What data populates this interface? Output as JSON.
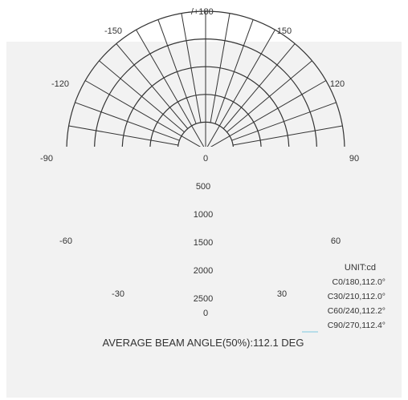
{
  "chart_data": {
    "type": "polar",
    "title": "",
    "unit_label": "UNIT:cd",
    "radial_ticks": [
      0,
      500,
      1000,
      1500,
      2000,
      2500
    ],
    "radial_max": 2500,
    "angle_ticks": [
      {
        "label": "-/+180",
        "angle": 180
      },
      {
        "label": "-150",
        "angle": -150
      },
      {
        "label": "150",
        "angle": 150
      },
      {
        "label": "-120",
        "angle": -120
      },
      {
        "label": "120",
        "angle": 120
      },
      {
        "label": "-90",
        "angle": -90
      },
      {
        "label": "90",
        "angle": 90
      },
      {
        "label": "-60",
        "angle": -60
      },
      {
        "label": "60",
        "angle": 60
      },
      {
        "label": "-30",
        "angle": -30
      },
      {
        "label": "30",
        "angle": 30
      },
      {
        "label": "0",
        "angle": 0
      }
    ],
    "spoke_step_deg": 10,
    "series": [
      {
        "name": "C0/180,112.0°",
        "color": ""
      },
      {
        "name": "C30/210,112.0°",
        "color": ""
      },
      {
        "name": "C60/240,112.2°",
        "color": ""
      },
      {
        "name": "C90/270,112.4°",
        "color": "#7fc8e0"
      }
    ],
    "legend_position": "bottom-right",
    "footer": "AVERAGE BEAM ANGLE(50%):112.1 DEG",
    "grid": true,
    "colors": {
      "plot_background": "#f2f2f2",
      "grid": "#333333"
    }
  }
}
